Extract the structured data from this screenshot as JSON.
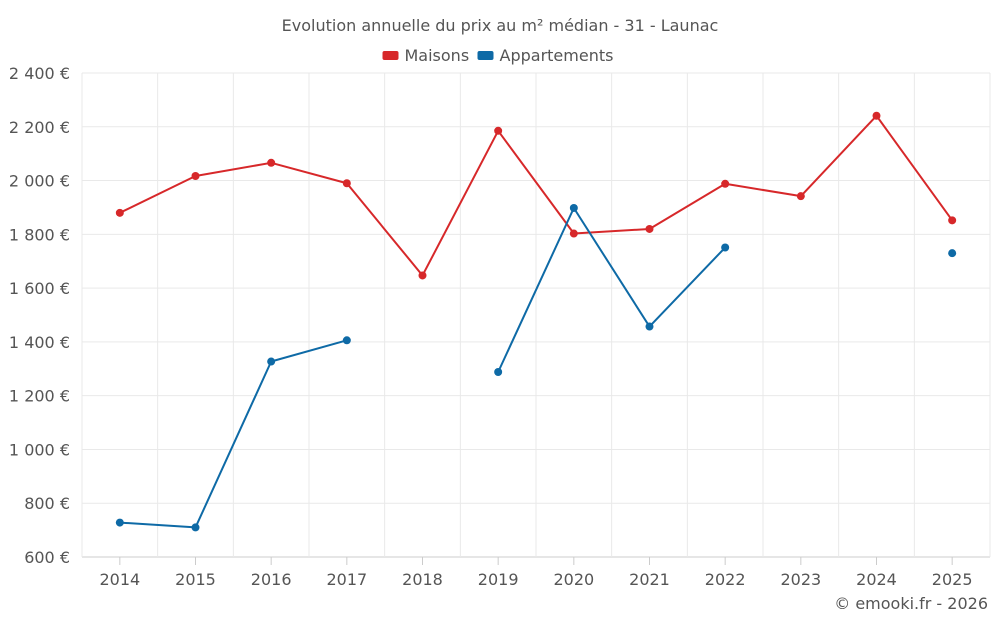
{
  "chart_data": {
    "type": "line",
    "title": "Evolution annuelle du prix au m² médian - 31 - Launac",
    "xlabel": "",
    "ylabel": "",
    "categories": [
      "2014",
      "2015",
      "2016",
      "2017",
      "2018",
      "2019",
      "2020",
      "2021",
      "2022",
      "2023",
      "2024",
      "2025"
    ],
    "ylim": [
      600,
      2400
    ],
    "yticks": [
      600,
      800,
      1000,
      1200,
      1400,
      1600,
      1800,
      2000,
      2200,
      2400
    ],
    "ytick_labels": [
      "600 €",
      "800 €",
      "1 000 €",
      "1 200 €",
      "1 400 €",
      "1 600 €",
      "1 800 €",
      "2 000 €",
      "2 200 €",
      "2 400 €"
    ],
    "grid": true,
    "legend_position": "top-center",
    "series": [
      {
        "name": "Maisons",
        "color": "#d7282a",
        "values": [
          1880,
          2017,
          2066,
          1990,
          1647,
          2185,
          1803,
          1820,
          1988,
          1942,
          2241,
          1852
        ]
      },
      {
        "name": "Appartements",
        "color": "#0e6aa6",
        "values": [
          728,
          710,
          1327,
          1406,
          null,
          1288,
          1898,
          1457,
          1751,
          null,
          null,
          1730
        ]
      }
    ]
  },
  "credit": "© emooki.fr - 2026"
}
